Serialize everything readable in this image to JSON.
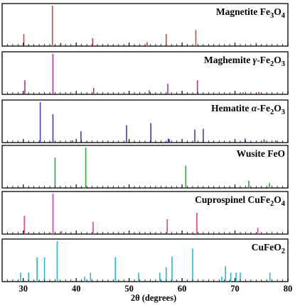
{
  "chart_data": {
    "type": "bar",
    "x_range": [
      26,
      80
    ],
    "xlabel": "2θ (degrees)",
    "x_ticks": [
      "30",
      "40",
      "50",
      "60",
      "70",
      "80"
    ],
    "grid": false,
    "panels": [
      {
        "label_parts": [
          "Magnetite Fe",
          "3",
          "O",
          "4"
        ],
        "color": "#e0404a",
        "ylim": [
          0,
          100
        ],
        "peaks": [
          {
            "x": 30.1,
            "y": 30
          },
          {
            "x": 35.5,
            "y": 100
          },
          {
            "x": 37.1,
            "y": 8
          },
          {
            "x": 43.1,
            "y": 20
          },
          {
            "x": 53.4,
            "y": 10
          },
          {
            "x": 57.0,
            "y": 30
          },
          {
            "x": 62.6,
            "y": 40
          },
          {
            "x": 74.0,
            "y": 8
          }
        ]
      },
      {
        "label_parts": [
          "Maghemite ",
          "γ",
          "-Fe",
          "2",
          "O",
          "3"
        ],
        "color": "#b0309e",
        "ylim": [
          0,
          100
        ],
        "peaks": [
          {
            "x": 30.3,
            "y": 35
          },
          {
            "x": 35.6,
            "y": 100
          },
          {
            "x": 43.3,
            "y": 16
          },
          {
            "x": 53.8,
            "y": 10
          },
          {
            "x": 57.3,
            "y": 26
          },
          {
            "x": 62.9,
            "y": 35
          },
          {
            "x": 71.5,
            "y": 5
          },
          {
            "x": 74.5,
            "y": 6
          }
        ]
      },
      {
        "label_parts": [
          "Hematite  ",
          "α",
          "-Fe",
          "2",
          "O",
          "3"
        ],
        "color": "#3f3fbf",
        "ylim": [
          0,
          100
        ],
        "peaks": [
          {
            "x": 33.2,
            "y": 100
          },
          {
            "x": 35.6,
            "y": 70
          },
          {
            "x": 39.3,
            "y": 5
          },
          {
            "x": 40.9,
            "y": 28
          },
          {
            "x": 49.5,
            "y": 43
          },
          {
            "x": 54.1,
            "y": 48
          },
          {
            "x": 57.4,
            "y": 10
          },
          {
            "x": 57.6,
            "y": 8
          },
          {
            "x": 62.4,
            "y": 32
          },
          {
            "x": 64.0,
            "y": 34
          },
          {
            "x": 71.9,
            "y": 10
          },
          {
            "x": 75.5,
            "y": 8
          },
          {
            "x": 77.7,
            "y": 5
          }
        ]
      },
      {
        "label_parts": [
          "Wusite FeO"
        ],
        "color": "#2ea83a",
        "ylim": [
          0,
          100
        ],
        "peaks": [
          {
            "x": 36.0,
            "y": 75
          },
          {
            "x": 41.8,
            "y": 100
          },
          {
            "x": 60.7,
            "y": 55
          },
          {
            "x": 72.6,
            "y": 18
          },
          {
            "x": 76.5,
            "y": 12
          }
        ]
      },
      {
        "label_parts": [
          "Cuprospinel  CuFe",
          "2",
          "O",
          "4"
        ],
        "color": "#e040a0",
        "ylim": [
          0,
          100
        ],
        "peaks": [
          {
            "x": 30.2,
            "y": 45
          },
          {
            "x": 35.6,
            "y": 100
          },
          {
            "x": 37.2,
            "y": 8
          },
          {
            "x": 43.2,
            "y": 30
          },
          {
            "x": 57.2,
            "y": 37
          },
          {
            "x": 62.8,
            "y": 53
          },
          {
            "x": 74.3,
            "y": 15
          }
        ]
      },
      {
        "label_parts": [
          "CuFeO",
          "2"
        ],
        "color": "#22b8d8",
        "ylim": [
          0,
          100
        ],
        "peaks": [
          {
            "x": 29.5,
            "y": 22
          },
          {
            "x": 31.0,
            "y": 22
          },
          {
            "x": 32.6,
            "y": 60
          },
          {
            "x": 34.0,
            "y": 60
          },
          {
            "x": 36.4,
            "y": 100
          },
          {
            "x": 41.6,
            "y": 12
          },
          {
            "x": 42.7,
            "y": 22
          },
          {
            "x": 47.4,
            "y": 60
          },
          {
            "x": 51.8,
            "y": 22
          },
          {
            "x": 55.8,
            "y": 22
          },
          {
            "x": 57.0,
            "y": 35
          },
          {
            "x": 58.1,
            "y": 62
          },
          {
            "x": 62.0,
            "y": 82
          },
          {
            "x": 67.5,
            "y": 12
          },
          {
            "x": 68.2,
            "y": 38
          },
          {
            "x": 69.2,
            "y": 22
          },
          {
            "x": 70.2,
            "y": 22
          },
          {
            "x": 71.0,
            "y": 22
          },
          {
            "x": 76.6,
            "y": 22
          }
        ]
      }
    ]
  }
}
